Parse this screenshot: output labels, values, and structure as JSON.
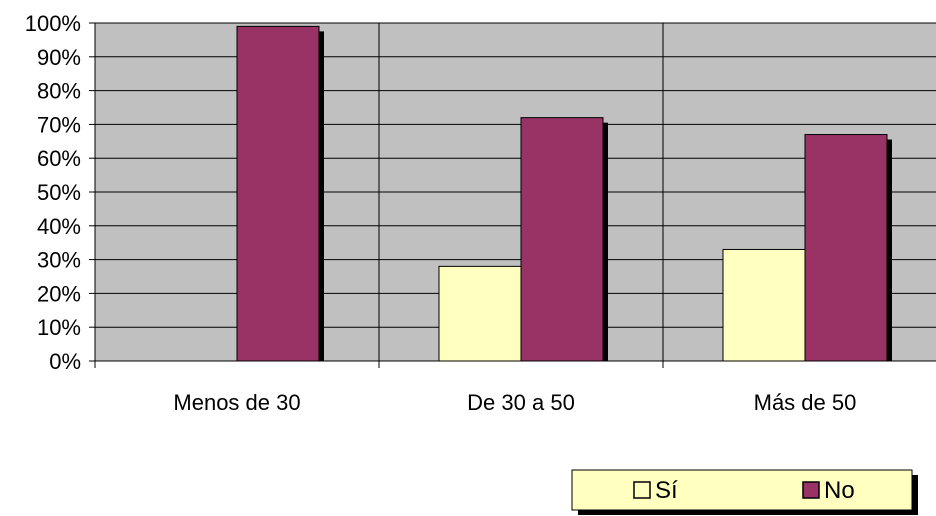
{
  "chart_data": {
    "type": "bar",
    "categories": [
      "Menos de 30",
      "De 30 a 50",
      "Más de 50"
    ],
    "series": [
      {
        "name": "Sí",
        "values": [
          0,
          28,
          33
        ],
        "color": "#ffffc0"
      },
      {
        "name": "No",
        "values": [
          99,
          72,
          67
        ],
        "color": "#993366"
      }
    ],
    "y_ticks": [
      "0%",
      "10%",
      "20%",
      "30%",
      "40%",
      "50%",
      "60%",
      "70%",
      "80%",
      "90%",
      "100%"
    ],
    "ylim": [
      0,
      100
    ],
    "grid": true,
    "legend_position": "bottom-right",
    "plot_background": "#c0c0c0"
  }
}
